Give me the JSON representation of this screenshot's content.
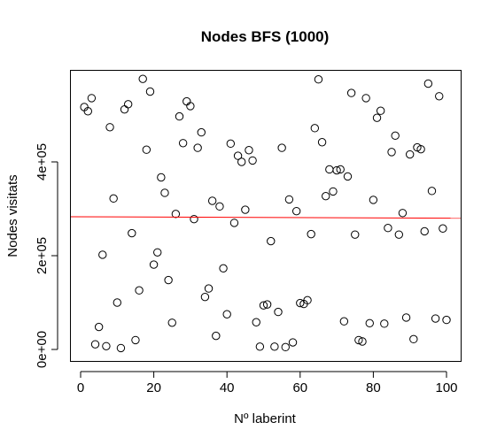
{
  "chart_data": {
    "type": "scatter",
    "title": "Nodes BFS (1000)",
    "xlabel": "Nº laberint",
    "ylabel": "Nodes visitats",
    "xlim": [
      0,
      100
    ],
    "ylim": [
      0,
      580000
    ],
    "x_ticks": [
      {
        "value": 0,
        "label": "0"
      },
      {
        "value": 20,
        "label": "20"
      },
      {
        "value": 40,
        "label": "40"
      },
      {
        "value": 60,
        "label": "60"
      },
      {
        "value": 80,
        "label": "80"
      },
      {
        "value": 100,
        "label": "100"
      }
    ],
    "y_ticks": [
      {
        "value": 0,
        "label": "0e+00"
      },
      {
        "value": 200000,
        "label": "2e+05"
      },
      {
        "value": 400000,
        "label": "4e+05"
      }
    ],
    "grid": false,
    "legend": "none",
    "marker": "open-circle",
    "reference_line": {
      "intercept": 283000,
      "slope": -30,
      "color": "#ff0000"
    },
    "x": [
      1,
      2,
      3,
      4,
      5,
      6,
      7,
      8,
      9,
      10,
      11,
      12,
      13,
      14,
      15,
      16,
      17,
      18,
      19,
      20,
      21,
      22,
      23,
      24,
      25,
      26,
      27,
      28,
      29,
      30,
      31,
      32,
      33,
      34,
      35,
      36,
      37,
      38,
      39,
      40,
      41,
      42,
      43,
      44,
      45,
      46,
      47,
      48,
      49,
      50,
      51,
      52,
      53,
      54,
      55,
      56,
      57,
      58,
      59,
      60,
      61,
      62,
      63,
      64,
      65,
      66,
      67,
      68,
      69,
      70,
      71,
      72,
      73,
      74,
      75,
      76,
      77,
      78,
      79,
      80,
      81,
      82,
      83,
      84,
      85,
      86,
      87,
      88,
      89,
      90,
      91,
      92,
      93,
      94,
      95,
      96,
      97,
      98,
      99,
      100
    ],
    "y": [
      517000,
      508000,
      536000,
      11000,
      48000,
      202000,
      7000,
      474000,
      322000,
      100000,
      3000,
      512000,
      523000,
      248000,
      20000,
      126000,
      577000,
      426000,
      550000,
      181000,
      207000,
      367000,
      334000,
      148000,
      57000,
      289000,
      497000,
      440000,
      529000,
      519000,
      278000,
      430000,
      463000,
      112000,
      130000,
      317000,
      29000,
      305000,
      173000,
      75000,
      439000,
      270000,
      413000,
      400000,
      298000,
      425000,
      403000,
      58000,
      6000,
      94000,
      96000,
      231000,
      6000,
      80000,
      430000,
      5000,
      320000,
      15000,
      295000,
      99000,
      97000,
      105000,
      246000,
      472000,
      576000,
      442000,
      327000,
      384000,
      337000,
      382000,
      384000,
      60000,
      369000,
      547000,
      245000,
      20000,
      17000,
      536000,
      56000,
      319000,
      494000,
      509000,
      55000,
      259000,
      421000,
      456000,
      245000,
      291000,
      68000,
      416000,
      22000,
      431000,
      427000,
      252000,
      567000,
      338000,
      66000,
      540000,
      258000,
      63000
    ]
  }
}
